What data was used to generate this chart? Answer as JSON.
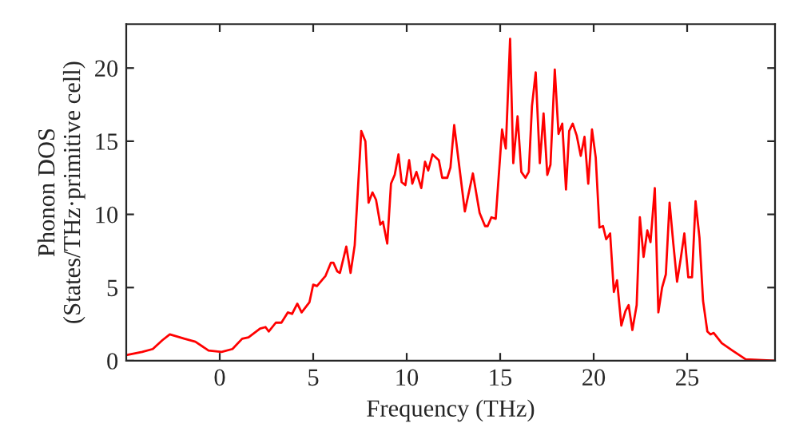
{
  "chart_data": {
    "type": "line",
    "xlabel": "Frequency (THz)",
    "ylabel": "Phonon DOS\n(States/THz·primitive cell)",
    "xlim": [
      -5,
      29.7
    ],
    "ylim": [
      0,
      23
    ],
    "xticks": [
      0,
      5,
      10,
      15,
      20,
      25
    ],
    "yticks": [
      0,
      5,
      10,
      15,
      20
    ],
    "grid": false,
    "legend": false,
    "series": [
      {
        "color": "#ff0000",
        "x": [
          -4.95,
          -4.15,
          -3.58,
          -3.07,
          -2.67,
          -1.88,
          -1.3,
          -0.6,
          0.1,
          0.68,
          1.2,
          1.54,
          2.16,
          2.45,
          2.62,
          3.0,
          3.3,
          3.64,
          3.87,
          4.15,
          4.38,
          4.8,
          5.0,
          5.2,
          5.66,
          5.95,
          6.08,
          6.29,
          6.43,
          6.77,
          7.0,
          7.22,
          7.57,
          7.79,
          7.96,
          8.17,
          8.36,
          8.59,
          8.73,
          8.96,
          9.16,
          9.36,
          9.56,
          9.73,
          9.93,
          10.13,
          10.3,
          10.52,
          10.78,
          10.98,
          11.15,
          11.38,
          11.72,
          11.9,
          12.17,
          12.34,
          12.54,
          13.11,
          13.54,
          13.9,
          14.19,
          14.33,
          14.53,
          14.76,
          15.1,
          15.3,
          15.53,
          15.7,
          15.93,
          16.13,
          16.35,
          16.53,
          16.7,
          16.9,
          17.12,
          17.32,
          17.52,
          17.69,
          17.92,
          18.12,
          18.32,
          18.52,
          18.69,
          18.88,
          19.09,
          19.31,
          19.51,
          19.71,
          19.91,
          20.11,
          20.31,
          20.5,
          20.67,
          20.88,
          21.08,
          21.25,
          21.48,
          21.7,
          21.87,
          22.07,
          22.3,
          22.47,
          22.67,
          22.87,
          23.04,
          23.27,
          23.46,
          23.66,
          23.86,
          24.06,
          24.26,
          24.46,
          24.66,
          24.85,
          25.06,
          25.26,
          25.45,
          25.66,
          25.85,
          26.08,
          26.25,
          26.42,
          26.85,
          27.42,
          28.13,
          29.7
        ],
        "values": [
          0.4,
          0.6,
          0.8,
          1.4,
          1.8,
          1.5,
          1.3,
          0.7,
          0.6,
          0.8,
          1.5,
          1.6,
          2.2,
          2.3,
          2.0,
          2.6,
          2.6,
          3.3,
          3.2,
          3.9,
          3.3,
          4.0,
          5.2,
          5.1,
          5.8,
          6.7,
          6.7,
          6.1,
          6.0,
          7.8,
          6.0,
          7.9,
          15.7,
          15.0,
          10.8,
          11.5,
          11.0,
          9.3,
          9.5,
          8.0,
          12.1,
          12.7,
          14.1,
          12.2,
          12.0,
          13.7,
          12.1,
          12.9,
          11.8,
          13.6,
          13.0,
          14.1,
          13.7,
          12.5,
          12.5,
          13.2,
          16.1,
          10.2,
          12.8,
          10.1,
          9.2,
          9.2,
          9.8,
          9.7,
          15.8,
          14.5,
          22.0,
          13.5,
          16.7,
          12.9,
          12.5,
          12.9,
          17.4,
          19.7,
          13.5,
          16.9,
          12.7,
          13.4,
          19.9,
          15.5,
          16.2,
          11.7,
          15.7,
          16.2,
          15.4,
          14.0,
          15.3,
          12.1,
          15.8,
          13.9,
          9.1,
          9.2,
          8.3,
          8.7,
          4.7,
          5.5,
          2.4,
          3.4,
          3.8,
          2.1,
          3.8,
          9.8,
          7.1,
          8.9,
          8.1,
          11.8,
          3.3,
          5.0,
          5.9,
          10.8,
          8.0,
          5.4,
          7.0,
          8.7,
          5.7,
          5.7,
          10.9,
          8.4,
          4.1,
          2.0,
          1.8,
          1.9,
          1.2,
          0.7,
          0.1,
          0.0
        ]
      }
    ]
  }
}
